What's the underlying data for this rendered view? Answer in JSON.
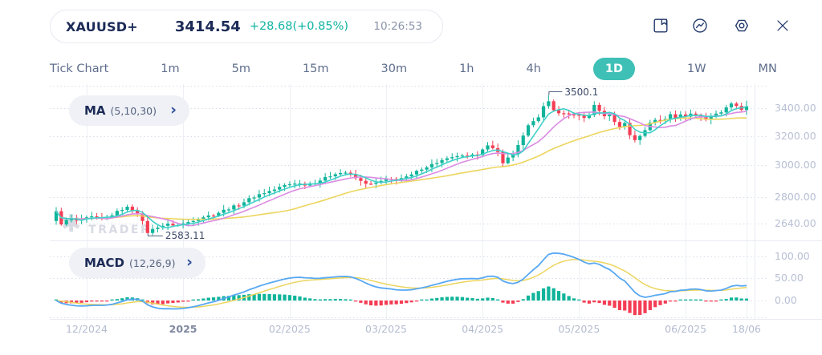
{
  "header": {
    "symbol": "XAUUSD+",
    "price": "3414.54",
    "change": "+28.68(+0.85%)",
    "time": "10:26:53"
  },
  "timeframes": [
    {
      "label": "Tick Chart",
      "active": false
    },
    {
      "label": "1m",
      "active": false
    },
    {
      "label": "5m",
      "active": false
    },
    {
      "label": "15m",
      "active": false
    },
    {
      "label": "30m",
      "active": false
    },
    {
      "label": "1h",
      "active": false
    },
    {
      "label": "4h",
      "active": false
    },
    {
      "label": "1D",
      "active": true
    },
    {
      "label": "1W",
      "active": false
    },
    {
      "label": "MN",
      "active": false
    }
  ],
  "indicators": {
    "ma": {
      "name": "MA",
      "params": "(5,10,30)"
    },
    "macd": {
      "name": "MACD",
      "params": "(12,26,9)"
    }
  },
  "watermark": {
    "text": "TRADER"
  },
  "colors": {
    "accent_teal": "#3ec0b6",
    "bull": "#10b49a",
    "bear": "#f43d54",
    "ma_fast": "#3fd0c9",
    "ma_mid": "#db8ce2",
    "ma_slow": "#ecd55e",
    "macd_line": "#58a8f2",
    "macd_signal": "#ecd55e",
    "navy": "#1c2b57",
    "change_teal": "#10b3a2",
    "axis_text": "#b7bfd3",
    "grid_dot": "#d9dde9",
    "grid_line": "#eef0f5",
    "pane_border": "#e9ebf2",
    "annotation_line": "#54607f"
  },
  "chart_data": {
    "type": "candlestick",
    "symbol": "XAUUSD+",
    "timeframe": "1D",
    "price_scale": "log",
    "last_price": 3414.54,
    "change_text": "+28.68(+0.85%)",
    "legend": [
      "MA (5,10,30)",
      "MACD (12,26,9)"
    ],
    "main_axis": {
      "labels": [
        "3400.00",
        "3200.00",
        "3000.00",
        "2800.00",
        "2640.00"
      ],
      "values": [
        3400,
        3200,
        3000,
        2800,
        2640
      ]
    },
    "macd_axis": {
      "labels": [
        "100.00",
        "50.00",
        "0.00"
      ],
      "values": [
        100,
        50,
        0
      ]
    },
    "x_ticks": [
      {
        "label": "12/2024",
        "day": 6
      },
      {
        "label": "2025",
        "day": 25,
        "emphasis": true
      },
      {
        "label": "02/2025",
        "day": 46
      },
      {
        "label": "03/2025",
        "day": 65
      },
      {
        "label": "04/2025",
        "day": 84
      },
      {
        "label": "05/2025",
        "day": 103
      },
      {
        "label": "06/2025",
        "day": 124
      },
      {
        "label": "18/06",
        "day": 136
      }
    ],
    "annotations": {
      "high": {
        "label": "3500.1",
        "value": 3500.1,
        "day": 97
      },
      "low": {
        "label": "2583.11",
        "value": 2583.11,
        "day": 18
      }
    },
    "num_candles": 137,
    "first_open": 2655,
    "close_anchors": [
      [
        0,
        2718
      ],
      [
        1,
        2631
      ],
      [
        2,
        2659
      ],
      [
        5,
        2664
      ],
      [
        7,
        2678
      ],
      [
        9,
        2664
      ],
      [
        11,
        2692
      ],
      [
        13,
        2725
      ],
      [
        14,
        2735
      ],
      [
        16,
        2706
      ],
      [
        17,
        2649
      ],
      [
        18,
        2590
      ],
      [
        20,
        2622
      ],
      [
        22,
        2635
      ],
      [
        24,
        2631
      ],
      [
        26,
        2649
      ],
      [
        28,
        2673
      ],
      [
        31,
        2692
      ],
      [
        33,
        2718
      ],
      [
        36,
        2752
      ],
      [
        38,
        2786
      ],
      [
        40,
        2815
      ],
      [
        43,
        2845
      ],
      [
        45,
        2871
      ],
      [
        47,
        2886
      ],
      [
        49,
        2876
      ],
      [
        51,
        2891
      ],
      [
        53,
        2917
      ],
      [
        55,
        2948
      ],
      [
        57,
        2953
      ],
      [
        58,
        2937
      ],
      [
        60,
        2896
      ],
      [
        62,
        2876
      ],
      [
        64,
        2896
      ],
      [
        65,
        2906
      ],
      [
        67,
        2911
      ],
      [
        69,
        2922
      ],
      [
        70,
        2937
      ],
      [
        72,
        2979
      ],
      [
        74,
        3005
      ],
      [
        76,
        3032
      ],
      [
        78,
        3048
      ],
      [
        79,
        3064
      ],
      [
        81,
        3053
      ],
      [
        83,
        3075
      ],
      [
        84,
        3113
      ],
      [
        85,
        3130
      ],
      [
        87,
        3086
      ],
      [
        88,
        3021
      ],
      [
        90,
        3075
      ],
      [
        91,
        3140
      ],
      [
        92,
        3198
      ],
      [
        93,
        3268
      ],
      [
        95,
        3338
      ],
      [
        96,
        3410
      ],
      [
        97,
        3452
      ],
      [
        98,
        3390
      ],
      [
        99,
        3356
      ],
      [
        100,
        3368
      ],
      [
        101,
        3350
      ],
      [
        102,
        3358
      ],
      [
        103,
        3344
      ],
      [
        104,
        3330
      ],
      [
        105,
        3352
      ],
      [
        106,
        3428
      ],
      [
        107,
        3376
      ],
      [
        108,
        3340
      ],
      [
        109,
        3356
      ],
      [
        110,
        3306
      ],
      [
        111,
        3270
      ],
      [
        112,
        3286
      ],
      [
        113,
        3210
      ],
      [
        114,
        3170
      ],
      [
        115,
        3200
      ],
      [
        116,
        3240
      ],
      [
        117,
        3298
      ],
      [
        118,
        3316
      ],
      [
        119,
        3306
      ],
      [
        120,
        3328
      ],
      [
        121,
        3350
      ],
      [
        122,
        3334
      ],
      [
        123,
        3356
      ],
      [
        124,
        3340
      ],
      [
        125,
        3362
      ],
      [
        126,
        3346
      ],
      [
        127,
        3328
      ],
      [
        128,
        3316
      ],
      [
        129,
        3334
      ],
      [
        130,
        3352
      ],
      [
        131,
        3370
      ],
      [
        132,
        3412
      ],
      [
        133,
        3430
      ],
      [
        134,
        3410
      ],
      [
        135,
        3390
      ],
      [
        136,
        3414.54
      ]
    ],
    "overlays": [
      {
        "name": "MA5",
        "period": 5
      },
      {
        "name": "MA10",
        "period": 10
      },
      {
        "name": "MA30",
        "period": 30
      }
    ],
    "macd_params": {
      "fast": 12,
      "slow": 26,
      "signal": 9
    }
  }
}
